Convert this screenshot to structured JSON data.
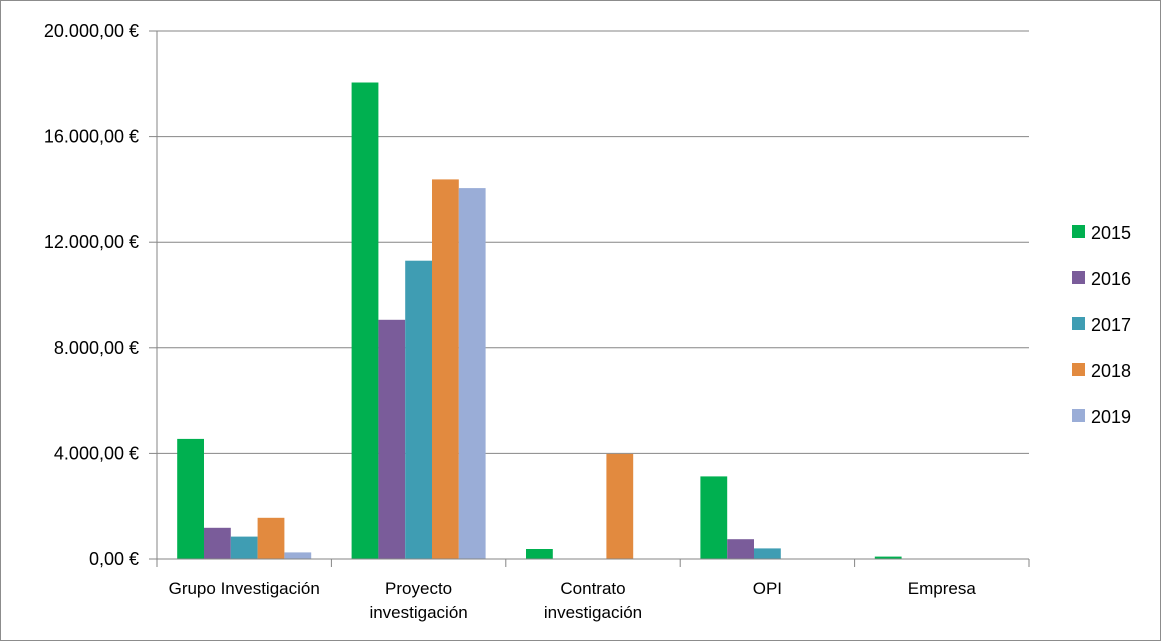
{
  "chart_data": {
    "type": "bar",
    "categories": [
      [
        "Grupo Investigación"
      ],
      [
        "Proyecto",
        "investigación"
      ],
      [
        "Contrato",
        "investigación"
      ],
      [
        "OPI"
      ],
      [
        "Empresa"
      ]
    ],
    "series": [
      {
        "name": "2015",
        "color": "#00b050",
        "values": [
          4550,
          18050,
          380,
          3130,
          90
        ]
      },
      {
        "name": "2016",
        "color": "#7a5c9a",
        "values": [
          1180,
          9060,
          0,
          750,
          0
        ]
      },
      {
        "name": "2017",
        "color": "#3f9db3",
        "values": [
          850,
          11300,
          0,
          400,
          0
        ]
      },
      {
        "name": "2018",
        "color": "#e28a3f",
        "values": [
          1560,
          14380,
          3980,
          0,
          0
        ]
      },
      {
        "name": "2019",
        "color": "#9aadd7",
        "values": [
          250,
          14050,
          0,
          0,
          0
        ]
      }
    ],
    "y_ticks": [
      "0,00 €",
      "4.000,00 €",
      "8.000,00 €",
      "12.000,00 €",
      "16.000,00 €",
      "20.000,00 €"
    ],
    "ylim": [
      0,
      20000
    ],
    "grid": true,
    "legend_position": "right",
    "axis_color": "#868686"
  }
}
